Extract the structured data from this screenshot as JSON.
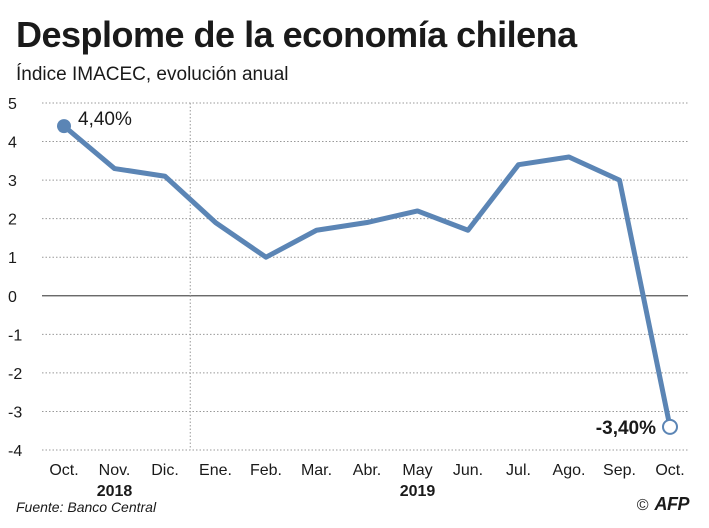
{
  "header": {
    "title": "Desplome de la economía chilena",
    "subtitle": "Índice IMACEC, evolución anual"
  },
  "footer": {
    "source": "Fuente: Banco Central",
    "copyright_symbol": "©",
    "agency": "AFP"
  },
  "colors": {
    "line": "#5b85b5",
    "grid": "#999999",
    "zero_line": "#555555",
    "text": "#1a1a1a"
  },
  "chart_data": {
    "type": "line",
    "title": "Desplome de la economía chilena",
    "subtitle": "Índice IMACEC, evolución anual",
    "xlabel": "",
    "ylabel": "",
    "ylim": [
      -4,
      5
    ],
    "yticks": [
      5,
      4,
      3,
      2,
      1,
      0,
      -1,
      -2,
      -3,
      -4
    ],
    "grid": true,
    "categories": [
      "Oct.",
      "Nov.",
      "Dic.",
      "Ene.",
      "Feb.",
      "Mar.",
      "Abr.",
      "May",
      "Jun.",
      "Jul.",
      "Ago.",
      "Sep.",
      "Oct."
    ],
    "year_labels": [
      {
        "label": "2018",
        "category_index": 1
      },
      {
        "label": "2019",
        "category_index": 7
      }
    ],
    "series": [
      {
        "name": "IMACEC",
        "values": [
          4.4,
          3.3,
          3.1,
          1.9,
          1.0,
          1.7,
          1.9,
          2.2,
          1.7,
          3.4,
          3.6,
          3.0,
          -3.4
        ]
      }
    ],
    "annotations": [
      {
        "text": "4,40%",
        "point_index": 0
      },
      {
        "text": "-3,40%",
        "point_index": 12
      }
    ]
  }
}
